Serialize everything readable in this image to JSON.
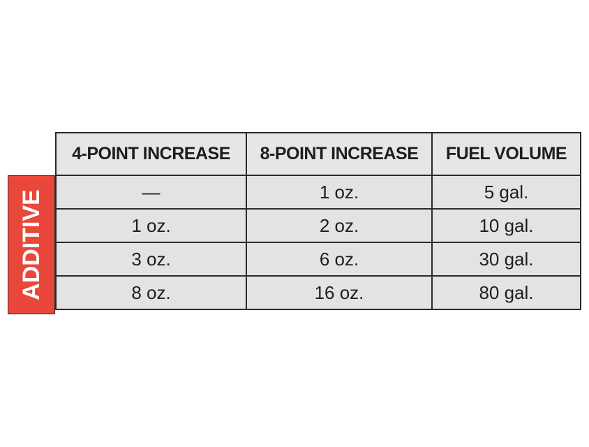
{
  "side_label": "ADDITIVE",
  "table": {
    "headers": [
      "4-POINT INCREASE",
      "8-POINT INCREASE",
      "FUEL VOLUME"
    ],
    "rows": [
      [
        "—",
        "1 oz.",
        "5 gal."
      ],
      [
        "1 oz.",
        "2 oz.",
        "10 gal."
      ],
      [
        "3 oz.",
        "6 oz.",
        "30 gal."
      ],
      [
        "8 oz.",
        "16 oz.",
        "80 gal."
      ]
    ]
  },
  "colors": {
    "accent": "#e8473a",
    "cell_background": "#e3e3e3",
    "border": "#2a2a2a"
  }
}
